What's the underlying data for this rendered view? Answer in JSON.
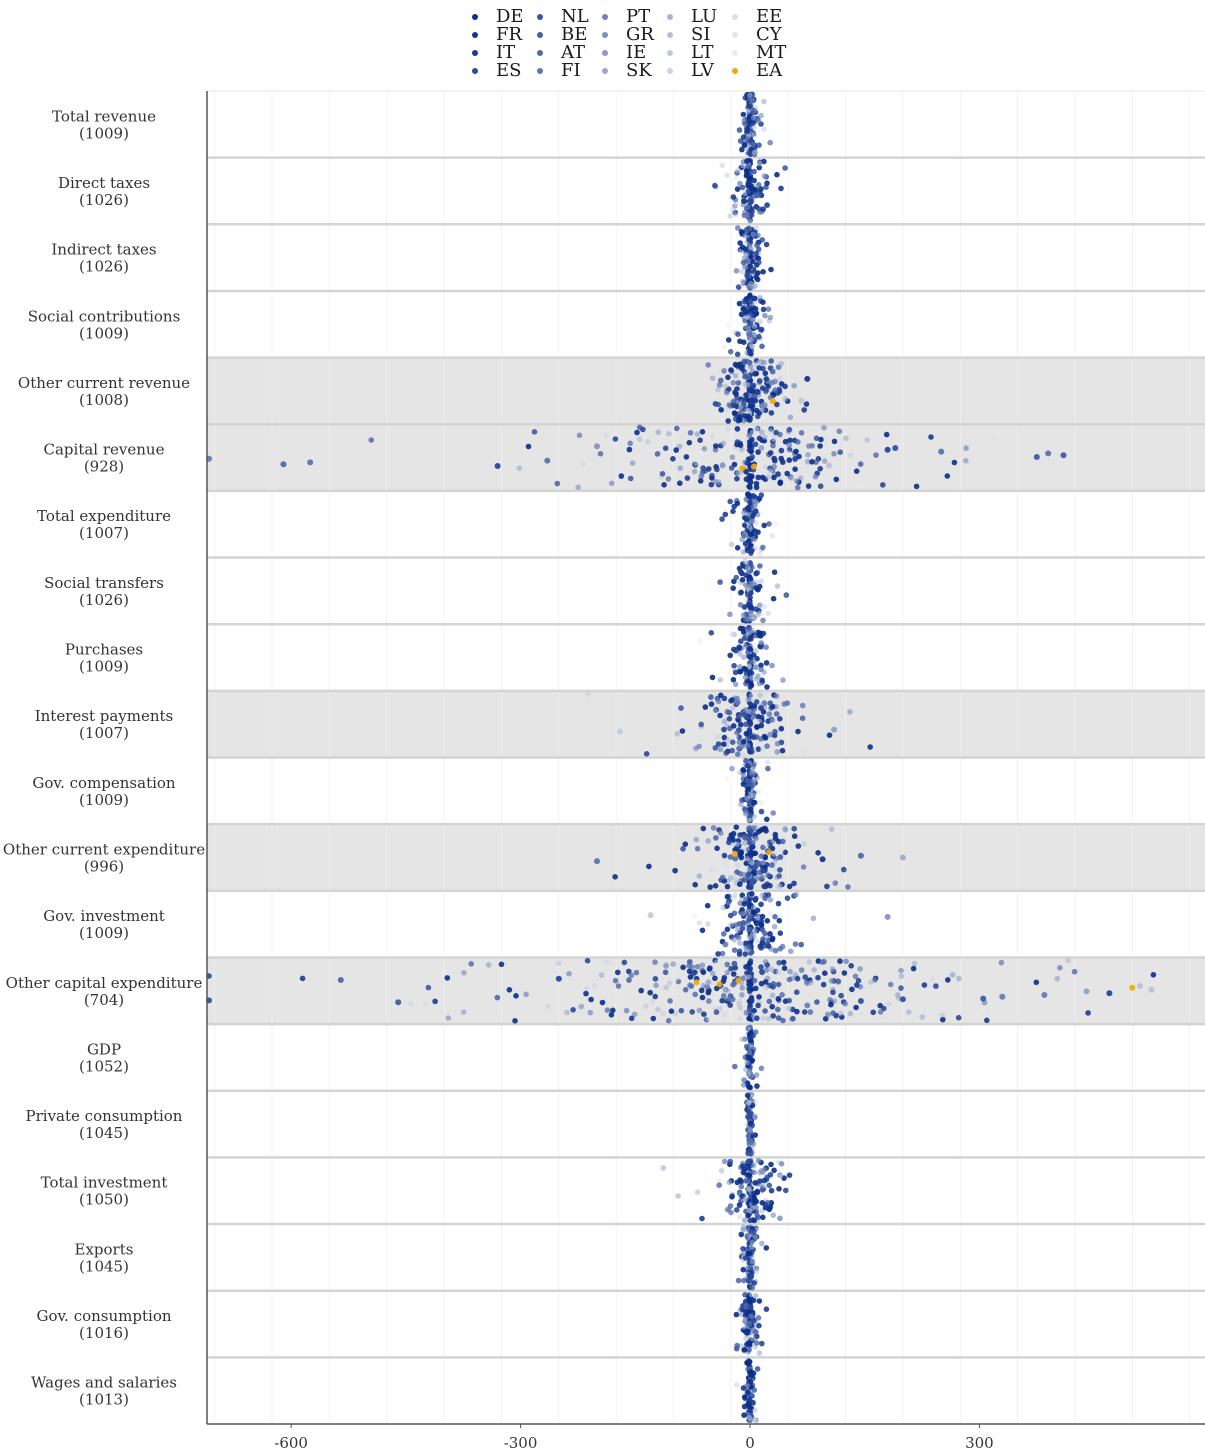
{
  "chart_data": {
    "type": "scatter",
    "title": "",
    "xlabel": "",
    "ylabel": "",
    "xlim": [
      -710,
      595
    ],
    "x_ticks": [
      -600,
      -300,
      0,
      300
    ],
    "x_tick_labels": [
      "-600",
      "-300",
      "0",
      "300"
    ],
    "grid": true,
    "legend_position": "top",
    "legend": [
      {
        "code": "DE",
        "color": "#0a2e8a"
      },
      {
        "code": "FR",
        "color": "#12358f"
      },
      {
        "code": "IT",
        "color": "#1b3d93"
      },
      {
        "code": "ES",
        "color": "#2a4b9a"
      },
      {
        "code": "NL",
        "color": "#3855a0"
      },
      {
        "code": "BE",
        "color": "#4560a6"
      },
      {
        "code": "AT",
        "color": "#526bac"
      },
      {
        "code": "FI",
        "color": "#5f77b2"
      },
      {
        "code": "PT",
        "color": "#6e84b9"
      },
      {
        "code": "GR",
        "color": "#7c90bf"
      },
      {
        "code": "IE",
        "color": "#8a9dc5"
      },
      {
        "code": "SK",
        "color": "#98a9cb"
      },
      {
        "code": "LU",
        "color": "#a6b4d0"
      },
      {
        "code": "SI",
        "color": "#b3bfd6"
      },
      {
        "code": "LT",
        "color": "#c0cadc"
      },
      {
        "code": "LV",
        "color": "#ccd4e2"
      },
      {
        "code": "EE",
        "color": "#d8dee8"
      },
      {
        "code": "CY",
        "color": "#e1e6ee"
      },
      {
        "code": "MT",
        "color": "#e9edf2"
      },
      {
        "code": "EA",
        "color": "#f5a800"
      }
    ],
    "categories": [
      {
        "label": "Total revenue",
        "count": "(1009)",
        "shaded": false,
        "spread": 5,
        "n": 90
      },
      {
        "label": "Direct taxes",
        "count": "(1026)",
        "shaded": false,
        "spread": 9,
        "n": 90
      },
      {
        "label": "Indirect taxes",
        "count": "(1026)",
        "shaded": false,
        "spread": 7,
        "n": 90
      },
      {
        "label": "Social contributions",
        "count": "(1009)",
        "shaded": false,
        "spread": 7,
        "n": 90
      },
      {
        "label": "Other current revenue",
        "count": "(1008)",
        "shaded": true,
        "spread": 20,
        "n": 170
      },
      {
        "label": "Capital revenue",
        "count": "(928)",
        "shaded": true,
        "spread": 70,
        "n": 220
      },
      {
        "label": "Total expenditure",
        "count": "(1007)",
        "shaded": false,
        "spread": 6,
        "n": 90
      },
      {
        "label": "Social transfers",
        "count": "(1026)",
        "shaded": false,
        "spread": 7,
        "n": 90
      },
      {
        "label": "Purchases",
        "count": "(1009)",
        "shaded": false,
        "spread": 10,
        "n": 100
      },
      {
        "label": "Interest payments",
        "count": "(1007)",
        "shaded": true,
        "spread": 25,
        "n": 150
      },
      {
        "label": "Gov. compensation",
        "count": "(1009)",
        "shaded": false,
        "spread": 5,
        "n": 90
      },
      {
        "label": "Other current expenditure",
        "count": "(996)",
        "shaded": true,
        "spread": 25,
        "n": 180
      },
      {
        "label": "Gov. investment",
        "count": "(1009)",
        "shaded": false,
        "spread": 18,
        "n": 150
      },
      {
        "label": "Other capital expenditure",
        "count": "(704)",
        "shaded": true,
        "spread": 110,
        "n": 320
      },
      {
        "label": "GDP",
        "count": "(1052)",
        "shaded": false,
        "spread": 3,
        "n": 60
      },
      {
        "label": "Private consumption",
        "count": "(1045)",
        "shaded": false,
        "spread": 2,
        "n": 60
      },
      {
        "label": "Total investment",
        "count": "(1050)",
        "shaded": false,
        "spread": 15,
        "n": 140
      },
      {
        "label": "Exports",
        "count": "(1045)",
        "shaded": false,
        "spread": 5,
        "n": 80
      },
      {
        "label": "Gov. consumption",
        "count": "(1016)",
        "shaded": false,
        "spread": 5,
        "n": 80
      },
      {
        "label": "Wages and salaries",
        "count": "(1013)",
        "shaded": false,
        "spread": 3,
        "n": 60
      }
    ],
    "outliers": [
      {
        "row": 4,
        "x": 75,
        "color": "#0a2e8a"
      },
      {
        "row": 4,
        "x": 30,
        "color": "#f5a800"
      },
      {
        "row": 5,
        "x": -330,
        "color": "#1b3d93"
      },
      {
        "row": 5,
        "x": -610,
        "color": "#4560a6"
      },
      {
        "row": 5,
        "x": -575,
        "color": "#526bac"
      },
      {
        "row": 5,
        "x": -265,
        "color": "#526bac"
      },
      {
        "row": 5,
        "x": -710,
        "color": "#5f77b2"
      },
      {
        "row": 5,
        "x": 375,
        "color": "#3855a0"
      },
      {
        "row": 5,
        "x": 410,
        "color": "#3855a0"
      },
      {
        "row": 5,
        "x": 390,
        "color": "#526bac"
      },
      {
        "row": 5,
        "x": 250,
        "color": "#526bac"
      },
      {
        "row": 5,
        "x": 180,
        "color": "#1b3d93"
      },
      {
        "row": 5,
        "x": 190,
        "color": "#2a4b9a"
      },
      {
        "row": 5,
        "x": -200,
        "color": "#7c90bf"
      },
      {
        "row": 5,
        "x": -10,
        "color": "#f5a800"
      },
      {
        "row": 5,
        "x": 5,
        "color": "#f5a800"
      },
      {
        "row": 9,
        "x": -170,
        "color": "#c0cadc"
      },
      {
        "row": 9,
        "x": 110,
        "color": "#8a9dc5"
      },
      {
        "row": 11,
        "x": -200,
        "color": "#526bac"
      },
      {
        "row": 11,
        "x": 95,
        "color": "#0a2e8a"
      },
      {
        "row": 11,
        "x": 200,
        "color": "#98a9cb"
      },
      {
        "row": 11,
        "x": 145,
        "color": "#4560a6"
      },
      {
        "row": 11,
        "x": -20,
        "color": "#f5a800"
      },
      {
        "row": 11,
        "x": 25,
        "color": "#f5a800"
      },
      {
        "row": 12,
        "x": 180,
        "color": "#7c90bf"
      },
      {
        "row": 12,
        "x": -130,
        "color": "#c0cadc"
      },
      {
        "row": 13,
        "x": -535,
        "color": "#4560a6"
      },
      {
        "row": 13,
        "x": -460,
        "color": "#3855a0"
      },
      {
        "row": 13,
        "x": -710,
        "color": "#2a4b9a"
      },
      {
        "row": 13,
        "x": 305,
        "color": "#3855a0"
      },
      {
        "row": 13,
        "x": 330,
        "color": "#5f77b2"
      },
      {
        "row": 13,
        "x": 385,
        "color": "#5f77b2"
      },
      {
        "row": 13,
        "x": 470,
        "color": "#1b3d93"
      },
      {
        "row": 13,
        "x": 440,
        "color": "#8a9dc5"
      },
      {
        "row": 13,
        "x": 525,
        "color": "#b3bfd6"
      },
      {
        "row": 13,
        "x": 500,
        "color": "#f5a800"
      },
      {
        "row": 13,
        "x": 510,
        "color": "#b3bfd6"
      },
      {
        "row": 13,
        "x": -40,
        "color": "#f5a800"
      },
      {
        "row": 13,
        "x": -70,
        "color": "#f5a800"
      },
      {
        "row": 13,
        "x": -15,
        "color": "#f5a800"
      },
      {
        "row": 13,
        "x": -250,
        "color": "#1b3d93"
      },
      {
        "row": 13,
        "x": 145,
        "color": "#2a4b9a"
      },
      {
        "row": 13,
        "x": 200,
        "color": "#2a4b9a"
      }
    ]
  }
}
